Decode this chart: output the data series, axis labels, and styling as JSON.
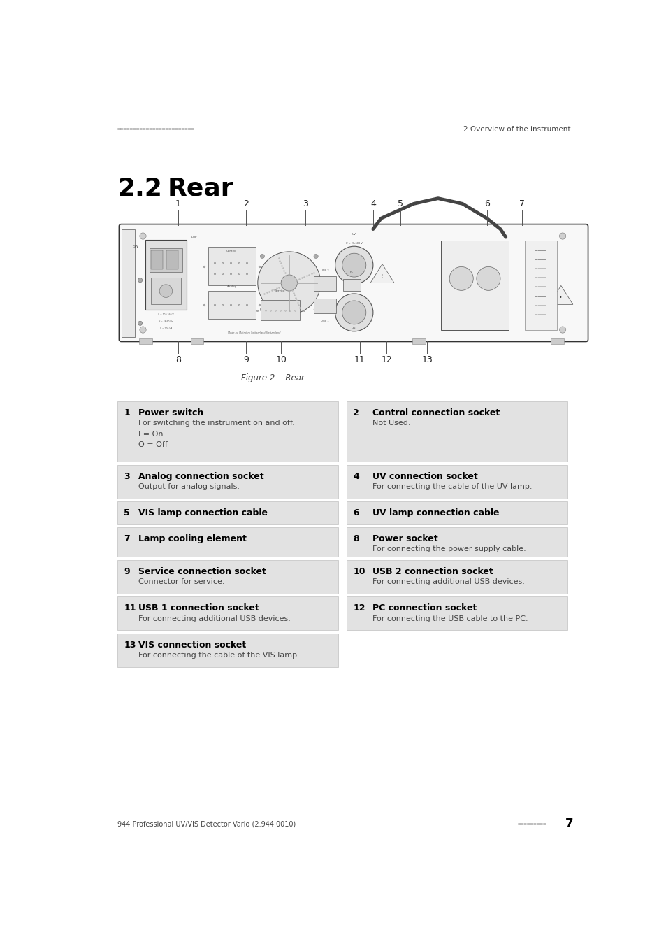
{
  "page_width": 9.54,
  "page_height": 13.5,
  "bg_color": "#ffffff",
  "header_left_text": "========================",
  "header_right_text": "2 Overview of the instrument",
  "section_number": "2.2",
  "section_title": "Rear",
  "figure_caption": "Figure 2    Rear",
  "footer_left": "944 Professional UV/VIS Detector Vario (2.944.0010)",
  "footer_right_squares": "=========",
  "footer_page": "7",
  "table_bg": "#e2e2e2",
  "table_border": "#cccccc",
  "items": [
    {
      "num": "1",
      "title": "Power switch",
      "desc": "For switching the instrument on and off.\nI = On\nO = Off",
      "col": 0
    },
    {
      "num": "2",
      "title": "Control connection socket",
      "desc": "Not Used.",
      "col": 1
    },
    {
      "num": "3",
      "title": "Analog connection socket",
      "desc": "Output for analog signals.",
      "col": 0
    },
    {
      "num": "4",
      "title": "UV connection socket",
      "desc": "For connecting the cable of the UV lamp.",
      "col": 1
    },
    {
      "num": "5",
      "title": "VIS lamp connection cable",
      "desc": "",
      "col": 0
    },
    {
      "num": "6",
      "title": "UV lamp connection cable",
      "desc": "",
      "col": 1
    },
    {
      "num": "7",
      "title": "Lamp cooling element",
      "desc": "",
      "col": 0
    },
    {
      "num": "8",
      "title": "Power socket",
      "desc": "For connecting the power supply cable.",
      "col": 1
    },
    {
      "num": "9",
      "title": "Service connection socket",
      "desc": "Connector for service.",
      "col": 0
    },
    {
      "num": "10",
      "title": "USB 2 connection socket",
      "desc": "For connecting additional USB devices.",
      "col": 1
    },
    {
      "num": "11",
      "title": "USB 1 connection socket",
      "desc": "For connecting additional USB devices.",
      "col": 0
    },
    {
      "num": "12",
      "title": "PC connection socket",
      "desc": "For connecting the USB cable to the PC.",
      "col": 1
    },
    {
      "num": "13",
      "title": "VIS connection socket",
      "desc": "For connecting the cable of the VIS lamp.",
      "col": 0
    }
  ],
  "top_labels": [
    [
      "1",
      1.75
    ],
    [
      "2",
      3.0
    ],
    [
      "3",
      4.1
    ],
    [
      "4",
      5.35
    ],
    [
      "5",
      5.85
    ],
    [
      "6",
      7.45
    ],
    [
      "7",
      8.1
    ]
  ],
  "bot_labels": [
    [
      "8",
      1.75
    ],
    [
      "9",
      3.0
    ],
    [
      "10",
      3.65
    ],
    [
      "11",
      5.1
    ],
    [
      "12",
      5.6
    ],
    [
      "13",
      6.35
    ]
  ]
}
